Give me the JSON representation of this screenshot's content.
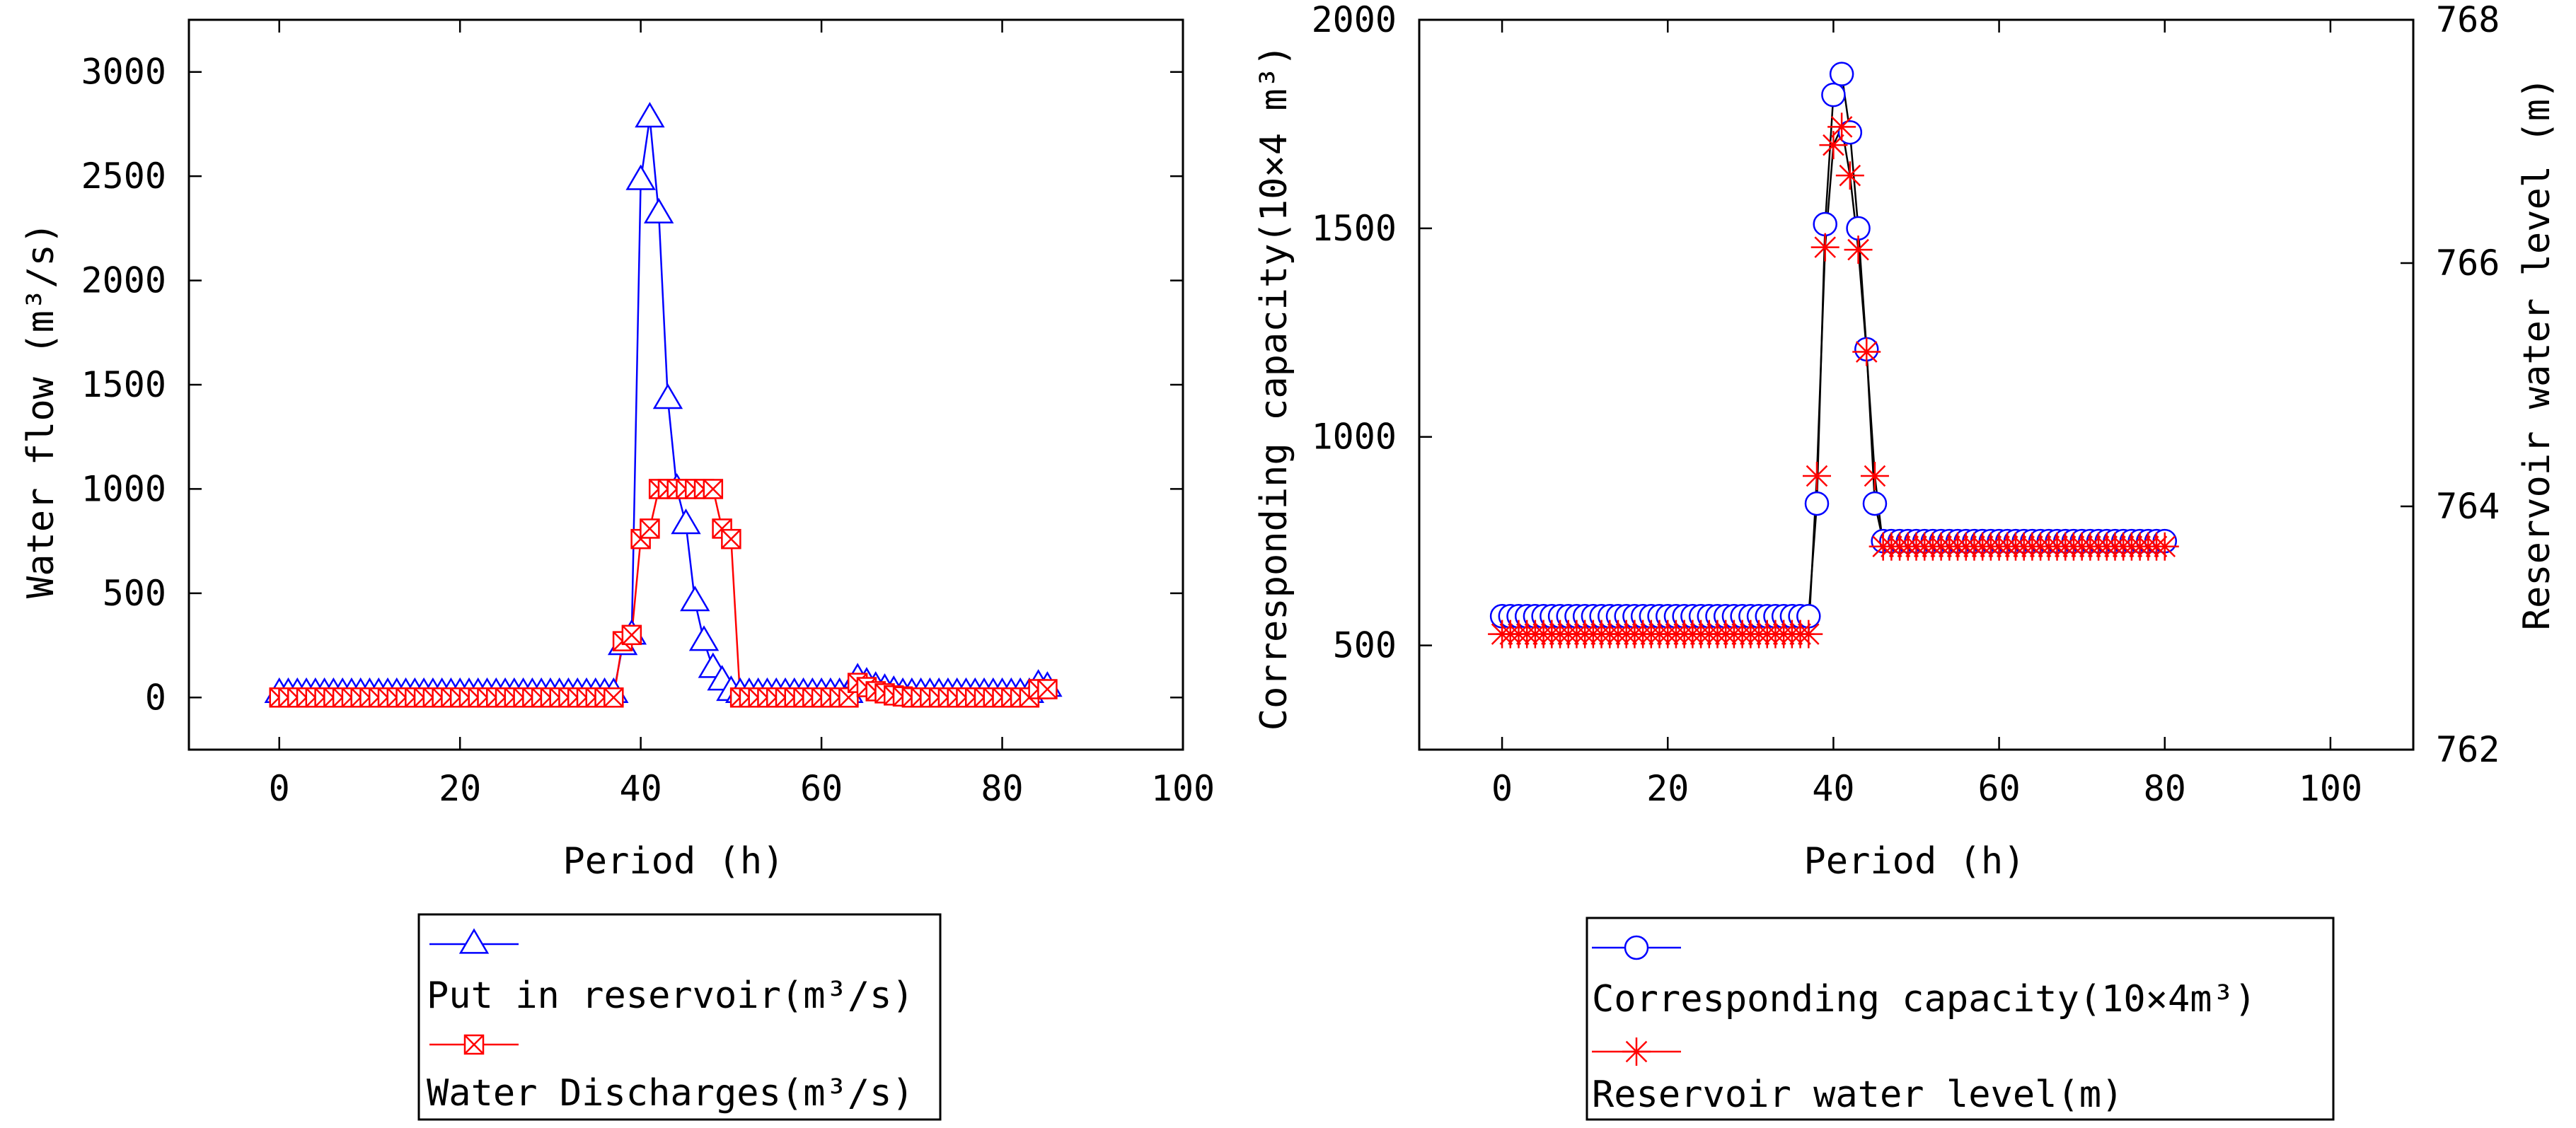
{
  "chart_data": [
    {
      "type": "line",
      "xlabel": "Period (h)",
      "ylabel": "Water flow (m³/s)",
      "xlim": [
        -10,
        100
      ],
      "ylim": [
        -250,
        3250
      ],
      "xticks": [
        0,
        20,
        40,
        60,
        80,
        100
      ],
      "yticks": [
        0,
        500,
        1000,
        1500,
        2000,
        2500,
        3000
      ],
      "grid": false,
      "legend_position": "below",
      "series": [
        {
          "name": "Put in reservoir(m³/s)",
          "color": "#0000ff",
          "marker": "triangle",
          "x": [
            0,
            1,
            2,
            3,
            4,
            5,
            6,
            7,
            8,
            9,
            10,
            11,
            12,
            13,
            14,
            15,
            16,
            17,
            18,
            19,
            20,
            21,
            22,
            23,
            24,
            25,
            26,
            27,
            28,
            29,
            30,
            31,
            32,
            33,
            34,
            35,
            36,
            37,
            38,
            39,
            40,
            41,
            42,
            43,
            44,
            45,
            46,
            47,
            48,
            49,
            50,
            51,
            52,
            53,
            54,
            55,
            56,
            57,
            58,
            59,
            60,
            61,
            62,
            63,
            64,
            65,
            66,
            67,
            68,
            69,
            70,
            71,
            72,
            73,
            74,
            75,
            76,
            77,
            78,
            79,
            80,
            81,
            82,
            83,
            84,
            85
          ],
          "values": [
            20,
            20,
            20,
            20,
            20,
            20,
            20,
            20,
            20,
            20,
            20,
            20,
            20,
            20,
            20,
            20,
            20,
            20,
            20,
            20,
            20,
            20,
            20,
            20,
            20,
            20,
            20,
            20,
            20,
            20,
            20,
            20,
            20,
            20,
            20,
            20,
            20,
            20,
            250,
            300,
            2480,
            2780,
            2320,
            1430,
            1000,
            830,
            460,
            270,
            140,
            80,
            30,
            20,
            20,
            20,
            20,
            20,
            20,
            20,
            20,
            20,
            20,
            20,
            20,
            20,
            90,
            70,
            50,
            40,
            30,
            20,
            20,
            20,
            20,
            20,
            20,
            20,
            20,
            20,
            20,
            20,
            20,
            20,
            20,
            20,
            60,
            50
          ]
        },
        {
          "name": "Water Discharges(m³/s)",
          "color": "#ff0000",
          "marker": "square-x",
          "x": [
            0,
            1,
            2,
            3,
            4,
            5,
            6,
            7,
            8,
            9,
            10,
            11,
            12,
            13,
            14,
            15,
            16,
            17,
            18,
            19,
            20,
            21,
            22,
            23,
            24,
            25,
            26,
            27,
            28,
            29,
            30,
            31,
            32,
            33,
            34,
            35,
            36,
            37,
            38,
            39,
            40,
            41,
            42,
            43,
            44,
            45,
            46,
            47,
            48,
            49,
            50,
            51,
            52,
            53,
            54,
            55,
            56,
            57,
            58,
            59,
            60,
            61,
            62,
            63,
            64,
            65,
            66,
            67,
            68,
            69,
            70,
            71,
            72,
            73,
            74,
            75,
            76,
            77,
            78,
            79,
            80,
            81,
            82,
            83,
            84,
            85
          ],
          "values": [
            0,
            0,
            0,
            0,
            0,
            0,
            0,
            0,
            0,
            0,
            0,
            0,
            0,
            0,
            0,
            0,
            0,
            0,
            0,
            0,
            0,
            0,
            0,
            0,
            0,
            0,
            0,
            0,
            0,
            0,
            0,
            0,
            0,
            0,
            0,
            0,
            0,
            0,
            270,
            300,
            760,
            810,
            1000,
            1000,
            1000,
            1000,
            1000,
            1000,
            1000,
            810,
            760,
            0,
            0,
            0,
            0,
            0,
            0,
            0,
            0,
            0,
            0,
            0,
            0,
            0,
            70,
            50,
            30,
            20,
            10,
            5,
            0,
            0,
            0,
            0,
            0,
            0,
            0,
            0,
            0,
            0,
            0,
            0,
            0,
            0,
            40,
            40
          ]
        }
      ]
    },
    {
      "type": "line",
      "xlabel": "Period (h)",
      "ylabel": "Corresponding capacity(10×4 m³)",
      "y2label": "Reservoir water level (m)",
      "xlim": [
        -10,
        110
      ],
      "ylim": [
        250,
        2000
      ],
      "y2lim": [
        762,
        768
      ],
      "xticks": [
        0,
        20,
        40,
        60,
        80,
        100
      ],
      "yticks": [
        500,
        1000,
        1500,
        2000
      ],
      "y2ticks": [
        762,
        764,
        766,
        768
      ],
      "grid": false,
      "legend_position": "below",
      "series": [
        {
          "name": "Corresponding capacity(10×4m³)",
          "color": "#0000ff",
          "marker": "circle",
          "axis": "left",
          "x": [
            0,
            1,
            2,
            3,
            4,
            5,
            6,
            7,
            8,
            9,
            10,
            11,
            12,
            13,
            14,
            15,
            16,
            17,
            18,
            19,
            20,
            21,
            22,
            23,
            24,
            25,
            26,
            27,
            28,
            29,
            30,
            31,
            32,
            33,
            34,
            35,
            36,
            37,
            38,
            39,
            40,
            41,
            42,
            43,
            44,
            45,
            46,
            47,
            48,
            49,
            50,
            51,
            52,
            53,
            54,
            55,
            56,
            57,
            58,
            59,
            60,
            61,
            62,
            63,
            64,
            65,
            66,
            67,
            68,
            69,
            70,
            71,
            72,
            73,
            74,
            75,
            76,
            77,
            78,
            79,
            80
          ],
          "values": [
            570,
            570,
            570,
            570,
            570,
            570,
            570,
            570,
            570,
            570,
            570,
            570,
            570,
            570,
            570,
            570,
            570,
            570,
            570,
            570,
            570,
            570,
            570,
            570,
            570,
            570,
            570,
            570,
            570,
            570,
            570,
            570,
            570,
            570,
            570,
            570,
            570,
            570,
            840,
            1510,
            1820,
            1870,
            1730,
            1500,
            1210,
            840,
            750,
            750,
            750,
            750,
            750,
            750,
            750,
            750,
            750,
            750,
            750,
            750,
            750,
            750,
            750,
            750,
            750,
            750,
            750,
            750,
            750,
            750,
            750,
            750,
            750,
            750,
            750,
            750,
            750,
            750,
            750,
            750,
            750,
            750,
            750
          ]
        },
        {
          "name": "Reservoir water level(m)",
          "color": "#ff0000",
          "marker": "star",
          "axis": "right",
          "x": [
            0,
            1,
            2,
            3,
            4,
            5,
            6,
            7,
            8,
            9,
            10,
            11,
            12,
            13,
            14,
            15,
            16,
            17,
            18,
            19,
            20,
            21,
            22,
            23,
            24,
            25,
            26,
            27,
            28,
            29,
            30,
            31,
            32,
            33,
            34,
            35,
            36,
            37,
            38,
            39,
            40,
            41,
            42,
            43,
            44,
            45,
            46,
            47,
            48,
            49,
            50,
            51,
            52,
            53,
            54,
            55,
            56,
            57,
            58,
            59,
            60,
            61,
            62,
            63,
            64,
            65,
            66,
            67,
            68,
            69,
            70,
            71,
            72,
            73,
            74,
            75,
            76,
            77,
            78,
            79,
            80
          ],
          "values": [
            762.95,
            762.95,
            762.95,
            762.95,
            762.95,
            762.95,
            762.95,
            762.95,
            762.95,
            762.95,
            762.95,
            762.95,
            762.95,
            762.95,
            762.95,
            762.95,
            762.95,
            762.95,
            762.95,
            762.95,
            762.95,
            762.95,
            762.95,
            762.95,
            762.95,
            762.95,
            762.95,
            762.95,
            762.95,
            762.95,
            762.95,
            762.95,
            762.95,
            762.95,
            762.95,
            762.95,
            762.95,
            762.95,
            764.25,
            766.13,
            766.97,
            767.12,
            766.72,
            766.11,
            765.27,
            764.25,
            763.67,
            763.67,
            763.67,
            763.67,
            763.67,
            763.67,
            763.67,
            763.67,
            763.67,
            763.67,
            763.67,
            763.67,
            763.67,
            763.67,
            763.67,
            763.67,
            763.67,
            763.67,
            763.67,
            763.67,
            763.67,
            763.67,
            763.67,
            763.67,
            763.67,
            763.67,
            763.67,
            763.67,
            763.67,
            763.67,
            763.67,
            763.67,
            763.67,
            763.67,
            763.67
          ]
        }
      ]
    }
  ]
}
